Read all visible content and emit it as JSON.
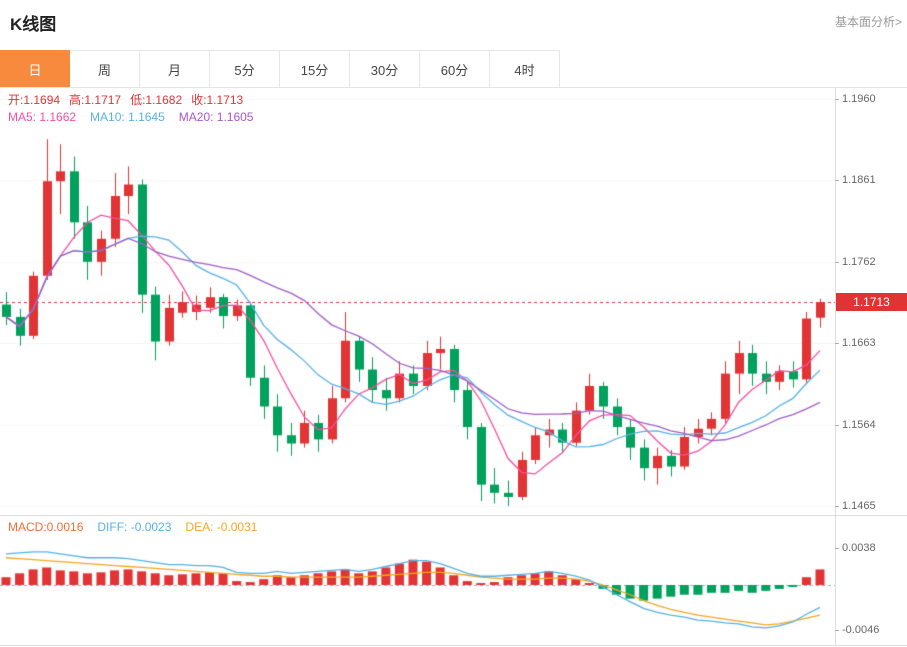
{
  "header": {
    "title": "K线图",
    "link": "基本面分析>"
  },
  "tabs": {
    "active_index": 0,
    "items": [
      {
        "id": "day",
        "label": "日"
      },
      {
        "id": "week",
        "label": "周"
      },
      {
        "id": "month",
        "label": "月"
      },
      {
        "id": "5min",
        "label": "5分"
      },
      {
        "id": "15min",
        "label": "15分"
      },
      {
        "id": "30min",
        "label": "30分"
      },
      {
        "id": "60min",
        "label": "60分"
      },
      {
        "id": "4hour",
        "label": "4时"
      }
    ]
  },
  "main_legend": {
    "ohlc": [
      {
        "id": "open",
        "label": "开:",
        "value": "1.1694"
      },
      {
        "id": "high",
        "label": "高:",
        "value": "1.1717"
      },
      {
        "id": "low",
        "label": "低:",
        "value": "1.1682"
      },
      {
        "id": "close",
        "label": "收:",
        "value": "1.1713"
      }
    ],
    "ma": [
      {
        "id": "ma5",
        "label": "MA5: ",
        "value": "1.1662",
        "color": "#f64fa0"
      },
      {
        "id": "ma10",
        "label": "MA10: ",
        "value": "1.1645",
        "color": "#57b1e6"
      },
      {
        "id": "ma20",
        "label": "MA20: ",
        "value": "1.1605",
        "color": "#aa55cc"
      }
    ]
  },
  "macd_legend": [
    {
      "id": "macd",
      "label": "MACD:",
      "value": "0.0016",
      "color": "#ee6f33"
    },
    {
      "id": "diff",
      "label": "DIFF: ",
      "value": "-0.0023",
      "color": "#57b1e6"
    },
    {
      "id": "dea",
      "label": "DEA: ",
      "value": "-0.0031",
      "color": "#f5a623"
    }
  ],
  "price_axis": {
    "labels": [
      "1.1960",
      "1.1861",
      "1.1762",
      "1.1663",
      "1.1564",
      "1.1465"
    ]
  },
  "macd_axis": {
    "labels": [
      "0.0038",
      "-0.0046"
    ]
  },
  "price_tag": {
    "text": "1.1713"
  },
  "colors": {
    "up": "#e23434",
    "down": "#00a15c",
    "ma5": "#f64fa0",
    "ma10": "#57b1e6",
    "ma20": "#a05fc8",
    "dif": "#57b1e6",
    "dea": "#f5a623",
    "dotted_price": "#e03434",
    "zero_dash": "#5fc8d8",
    "grid": "#f5f5f5",
    "tab_active": "#f78a3d"
  },
  "chart_data": {
    "type": "candlestick",
    "title": "K线图",
    "timeframe": "日",
    "y_axis_labels": [
      1.196,
      1.1861,
      1.1762,
      1.1663,
      1.1564,
      1.1465
    ],
    "current_price": 1.1713,
    "ohlc_display": {
      "open": 1.1694,
      "high": 1.1717,
      "low": 1.1682,
      "close": 1.1713
    },
    "ma_display": {
      "MA5": 1.1662,
      "MA10": 1.1645,
      "MA20": 1.1605
    },
    "ma_periods": [
      5,
      10,
      20
    ],
    "candles": [
      [
        1.171,
        1.1725,
        1.1685,
        1.1695
      ],
      [
        1.1695,
        1.1705,
        1.166,
        1.1672
      ],
      [
        1.1672,
        1.175,
        1.1668,
        1.1745
      ],
      [
        1.1745,
        1.1911,
        1.174,
        1.186
      ],
      [
        1.186,
        1.1905,
        1.182,
        1.1872
      ],
      [
        1.1872,
        1.189,
        1.179,
        1.181
      ],
      [
        1.181,
        1.183,
        1.174,
        1.1762
      ],
      [
        1.1762,
        1.18,
        1.1745,
        1.179
      ],
      [
        1.179,
        1.187,
        1.178,
        1.1842
      ],
      [
        1.1842,
        1.1878,
        1.182,
        1.1856
      ],
      [
        1.1856,
        1.1862,
        1.17,
        1.1722
      ],
      [
        1.1722,
        1.1732,
        1.1642,
        1.1665
      ],
      [
        1.1665,
        1.1722,
        1.166,
        1.1706
      ],
      [
        1.17,
        1.1726,
        1.1694,
        1.1713
      ],
      [
        1.1701,
        1.1721,
        1.1691,
        1.171
      ],
      [
        1.1706,
        1.1731,
        1.17,
        1.1719
      ],
      [
        1.1719,
        1.1723,
        1.1681,
        1.1696
      ],
      [
        1.1696,
        1.1716,
        1.169,
        1.1709
      ],
      [
        1.1709,
        1.1713,
        1.1611,
        1.1621
      ],
      [
        1.1621,
        1.1636,
        1.1571,
        1.1586
      ],
      [
        1.1586,
        1.1601,
        1.1531,
        1.1551
      ],
      [
        1.1551,
        1.1566,
        1.1526,
        1.1541
      ],
      [
        1.1541,
        1.1581,
        1.1536,
        1.1566
      ],
      [
        1.1566,
        1.1576,
        1.1531,
        1.1546
      ],
      [
        1.1546,
        1.1611,
        1.1541,
        1.1596
      ],
      [
        1.1596,
        1.1701,
        1.1591,
        1.1666
      ],
      [
        1.1666,
        1.1671,
        1.1616,
        1.1631
      ],
      [
        1.1631,
        1.1646,
        1.1591,
        1.1606
      ],
      [
        1.1606,
        1.1621,
        1.1581,
        1.1596
      ],
      [
        1.1596,
        1.1641,
        1.1591,
        1.1626
      ],
      [
        1.1626,
        1.1636,
        1.1601,
        1.1611
      ],
      [
        1.1611,
        1.1666,
        1.1606,
        1.1651
      ],
      [
        1.1651,
        1.1671,
        1.1631,
        1.1656
      ],
      [
        1.1656,
        1.1661,
        1.1591,
        1.1606
      ],
      [
        1.1606,
        1.1616,
        1.1546,
        1.1561
      ],
      [
        1.1561,
        1.1566,
        1.1471,
        1.1491
      ],
      [
        1.1491,
        1.1511,
        1.1468,
        1.1481
      ],
      [
        1.1481,
        1.1496,
        1.1465,
        1.1476
      ],
      [
        1.1476,
        1.1531,
        1.1472,
        1.1521
      ],
      [
        1.1521,
        1.1561,
        1.1516,
        1.1551
      ],
      [
        1.1551,
        1.1571,
        1.1536,
        1.1558
      ],
      [
        1.1558,
        1.1566,
        1.1531,
        1.1542
      ],
      [
        1.1542,
        1.1591,
        1.1538,
        1.1581
      ],
      [
        1.1581,
        1.1626,
        1.1576,
        1.1611
      ],
      [
        1.1611,
        1.1616,
        1.1571,
        1.1586
      ],
      [
        1.1586,
        1.1596,
        1.1551,
        1.1561
      ],
      [
        1.1561,
        1.1571,
        1.1521,
        1.1536
      ],
      [
        1.1536,
        1.1546,
        1.1496,
        1.1511
      ],
      [
        1.1511,
        1.1536,
        1.1491,
        1.1526
      ],
      [
        1.1526,
        1.1533,
        1.1501,
        1.1513
      ],
      [
        1.1513,
        1.1561,
        1.1509,
        1.1549
      ],
      [
        1.1549,
        1.1571,
        1.1541,
        1.1559
      ],
      [
        1.1559,
        1.1579,
        1.1551,
        1.1571
      ],
      [
        1.1571,
        1.1641,
        1.1566,
        1.1626
      ],
      [
        1.1626,
        1.1666,
        1.1601,
        1.1651
      ],
      [
        1.1651,
        1.1661,
        1.1611,
        1.1626
      ],
      [
        1.1626,
        1.1641,
        1.1601,
        1.1616
      ],
      [
        1.1616,
        1.1636,
        1.1606,
        1.1629
      ],
      [
        1.1629,
        1.1641,
        1.1609,
        1.1619
      ],
      [
        1.1619,
        1.1701,
        1.1613,
        1.1693
      ],
      [
        1.1694,
        1.1717,
        1.1682,
        1.1713
      ]
    ],
    "macd": {
      "display": {
        "MACD": 0.0016,
        "DIFF": -0.0023,
        "DEA": -0.0031
      },
      "y_axis_labels": [
        0.0038,
        -0.0046
      ],
      "hist": [
        0.0008,
        0.0012,
        0.0016,
        0.0018,
        0.0015,
        0.0014,
        0.0012,
        0.0013,
        0.0015,
        0.0016,
        0.0014,
        0.0012,
        0.001,
        0.0011,
        0.0012,
        0.0013,
        0.0012,
        0.0004,
        0.0003,
        0.0006,
        0.001,
        0.0008,
        0.001,
        0.0012,
        0.0014,
        0.0016,
        0.0012,
        0.0014,
        0.0018,
        0.0022,
        0.0026,
        0.0024,
        0.0018,
        0.001,
        0.0004,
        0.0002,
        0.0003,
        0.0008,
        0.001,
        0.0012,
        0.0014,
        0.001,
        0.0006,
        0.0002,
        -0.0004,
        -0.001,
        -0.0014,
        -0.0016,
        -0.0014,
        -0.0012,
        -0.001,
        -0.001,
        -0.0008,
        -0.0008,
        -0.0006,
        -0.0008,
        -0.0006,
        -0.0004,
        -0.0002,
        0.0008,
        0.0016
      ],
      "dea": [
        0.0028,
        0.0027,
        0.0026,
        0.0025,
        0.0024,
        0.0023,
        0.0022,
        0.0021,
        0.002,
        0.0019,
        0.0018,
        0.0017,
        0.0016,
        0.0015,
        0.0014,
        0.0013,
        0.0012,
        0.0011,
        0.001,
        0.0009,
        0.0009,
        0.0008,
        0.0008,
        0.0008,
        0.0008,
        0.0008,
        0.0008,
        0.0009,
        0.001,
        0.0011,
        0.0012,
        0.0013,
        0.0013,
        0.0012,
        0.001,
        0.0008,
        0.0007,
        0.0006,
        0.0006,
        0.0006,
        0.0007,
        0.0007,
        0.0006,
        0.0004,
        0.0,
        -0.0005,
        -0.001,
        -0.0016,
        -0.0021,
        -0.0025,
        -0.0028,
        -0.0031,
        -0.0033,
        -0.0035,
        -0.0037,
        -0.0039,
        -0.0041,
        -0.004,
        -0.0037,
        -0.0034,
        -0.0031
      ],
      "dif": [
        0.0032,
        0.0033,
        0.0034,
        0.0034,
        0.0032,
        0.003,
        0.0028,
        0.0028,
        0.0028,
        0.0027,
        0.0025,
        0.0023,
        0.0021,
        0.0021,
        0.002,
        0.002,
        0.0018,
        0.0013,
        0.0012,
        0.0012,
        0.0014,
        0.0012,
        0.0013,
        0.0014,
        0.0015,
        0.0016,
        0.0014,
        0.0016,
        0.0019,
        0.0022,
        0.0025,
        0.0025,
        0.0022,
        0.0017,
        0.0012,
        0.0009,
        0.0009,
        0.001,
        0.0011,
        0.0012,
        0.0014,
        0.0012,
        0.0009,
        0.0005,
        -0.0002,
        -0.001,
        -0.0017,
        -0.0024,
        -0.0028,
        -0.0031,
        -0.0033,
        -0.0036,
        -0.0037,
        -0.0039,
        -0.004,
        -0.0043,
        -0.0044,
        -0.0042,
        -0.0038,
        -0.003,
        -0.0023
      ]
    }
  }
}
